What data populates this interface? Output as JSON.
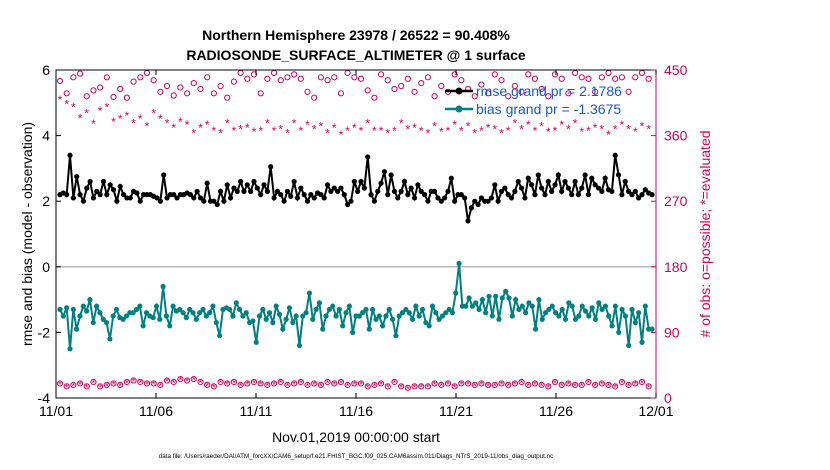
{
  "chart_data": {
    "type": "line",
    "title_lines": [
      "Northern Hemisphere 23978 / 26522 = 90.408%",
      "RADIOSONDE_SURFACE_ALTIMETER @ 1 surface"
    ],
    "xlabel": "Nov.01,2019 00:00:00 start",
    "ylabel_left": "rmse and bias (model - observation)",
    "ylabel_right": "# of obs: o=possible; *=evaluated",
    "x_ticks": [
      "11/01",
      "11/06",
      "11/11",
      "11/16",
      "11/21",
      "11/26",
      "12/01"
    ],
    "x_range_days": [
      0,
      30
    ],
    "ylim_left": [
      -4,
      6
    ],
    "y_ticks_left": [
      "-4",
      "-2",
      "0",
      "2",
      "4",
      "6"
    ],
    "ylim_right": [
      0,
      450
    ],
    "y_ticks_right": [
      "0",
      "90",
      "180",
      "270",
      "360",
      "450"
    ],
    "legend": [
      {
        "label": "rmse grand pr = 2.1786",
        "color": "#000000"
      },
      {
        "label": "bias grand pr = -1.3675",
        "color": "#008080"
      }
    ],
    "footnote": "data file: /Users/raeder/DAI/ATM_forcXX/CAM6_setup/f.e21.FHIST_BGC.f09_025.CAM6assim.011/Diags_NTrS_2019-11/obs_diag_output.nc",
    "colors": {
      "rmse": "#000000",
      "bias": "#008080",
      "counts": "#d6005c",
      "zero_line": "#bbbbbb",
      "legend_text": "#1a55e0"
    },
    "series": [
      {
        "name": "rmse",
        "values": [
          2.2,
          2.25,
          2.2,
          3.4,
          2.1,
          2.75,
          2.2,
          2.0,
          2.4,
          2.6,
          2.1,
          2.3,
          2.2,
          2.6,
          2.2,
          2.5,
          2.35,
          2.0,
          2.45,
          2.2,
          2.1,
          2.1,
          2.3,
          2.25,
          2.0,
          2.2,
          2.2,
          2.2,
          2.15,
          2.1,
          2.0,
          2.8,
          2.1,
          2.2,
          2.2,
          2.1,
          2.2,
          2.2,
          2.25,
          2.2,
          2.1,
          2.3,
          2.1,
          2.0,
          2.55,
          2.0,
          2.0,
          1.9,
          2.3,
          2.0,
          2.5,
          2.1,
          2.4,
          2.3,
          2.6,
          2.3,
          2.5,
          2.3,
          2.6,
          2.4,
          2.2,
          2.5,
          2.3,
          3.05,
          2.1,
          2.3,
          2.2,
          2.0,
          2.3,
          2.15,
          2.6,
          2.1,
          2.4,
          2.2,
          2.0,
          2.2,
          2.1,
          2.25,
          2.2,
          2.1,
          2.5,
          2.3,
          2.4,
          2.3,
          2.4,
          2.2,
          1.9,
          2.0,
          2.6,
          2.3,
          2.6,
          2.4,
          3.35,
          2.2,
          2.0,
          2.3,
          2.55,
          2.9,
          2.2,
          2.8,
          2.3,
          2.1,
          2.3,
          2.6,
          2.2,
          2.4,
          2.1,
          2.5,
          2.3,
          2.2,
          2.0,
          2.3,
          2.3,
          2.1,
          2.0,
          2.1,
          2.3,
          2.7,
          2.0,
          2.2,
          2.2,
          2.1,
          1.4,
          1.8,
          2.0,
          1.9,
          2.1,
          2.0,
          2.0,
          2.1,
          2.5,
          2.0,
          2.3,
          2.4,
          2.2,
          2.1,
          2.3,
          2.6,
          2.4,
          2.1,
          2.7,
          2.5,
          2.2,
          2.8,
          2.4,
          2.2,
          2.6,
          2.3,
          2.5,
          2.8,
          2.3,
          2.6,
          2.4,
          2.2,
          2.6,
          2.2,
          2.4,
          2.8,
          2.2,
          2.7,
          2.5,
          2.4,
          2.3,
          2.7,
          2.35,
          2.3,
          3.4,
          2.8,
          2.2,
          2.6,
          2.3,
          2.2,
          2.3,
          2.1,
          2.2,
          2.35,
          2.25,
          2.2
        ]
      },
      {
        "name": "bias",
        "values": [
          -1.3,
          -1.5,
          -1.25,
          -2.5,
          -1.3,
          -1.9,
          -1.5,
          -1.2,
          -1.35,
          -1.0,
          -1.7,
          -1.2,
          -1.4,
          -1.6,
          -1.7,
          -2.2,
          -1.5,
          -1.3,
          -1.55,
          -1.6,
          -1.5,
          -1.4,
          -1.4,
          -1.3,
          -1.2,
          -1.8,
          -1.4,
          -1.5,
          -1.55,
          -1.2,
          -1.6,
          -0.6,
          -1.5,
          -1.8,
          -1.2,
          -1.35,
          -1.3,
          -1.4,
          -1.55,
          -1.3,
          -1.4,
          -1.6,
          -1.4,
          -1.3,
          -1.5,
          -1.4,
          -1.2,
          -1.7,
          -2.1,
          -1.3,
          -1.25,
          -1.3,
          -1.5,
          -1.1,
          -1.3,
          -1.5,
          -1.4,
          -1.7,
          -1.65,
          -2.3,
          -1.5,
          -1.3,
          -1.6,
          -1.4,
          -1.7,
          -1.2,
          -1.45,
          -1.9,
          -1.6,
          -1.25,
          -1.7,
          -1.5,
          -2.4,
          -1.5,
          -1.4,
          -0.8,
          -1.6,
          -1.3,
          -1.1,
          -1.9,
          -1.5,
          -1.3,
          -1.2,
          -1.5,
          -1.3,
          -1.8,
          -1.4,
          -1.2,
          -2.0,
          -1.5,
          -1.5,
          -1.4,
          -1.3,
          -1.9,
          -1.3,
          -1.6,
          -1.5,
          -1.8,
          -1.5,
          -1.3,
          -1.6,
          -2.1,
          -1.5,
          -1.4,
          -1.3,
          -1.4,
          -1.6,
          -1.2,
          -1.5,
          -1.3,
          -1.7,
          -1.8,
          -1.2,
          -1.4,
          -1.6,
          -1.5,
          -1.4,
          -1.3,
          -1.4,
          -0.8,
          0.1,
          -1.2,
          -1.2,
          -0.95,
          -1.2,
          -1.1,
          -1.3,
          -1.0,
          -1.4,
          -0.9,
          -1.5,
          -0.9,
          -1.6,
          -0.95,
          -0.75,
          -0.95,
          -1.5,
          -1.0,
          -1.3,
          -1.2,
          -1.4,
          -1.1,
          -1.2,
          -1.9,
          -1.0,
          -1.6,
          -1.4,
          -1.3,
          -1.2,
          -1.4,
          -1.5,
          -1.3,
          -1.6,
          -1.1,
          -1.2,
          -1.6,
          -1.5,
          -1.2,
          -1.35,
          -1.5,
          -1.25,
          -1.6,
          -1.1,
          -1.3,
          -1.2,
          -1.5,
          -1.8,
          -1.2,
          -2.0,
          -1.3,
          -1.5,
          -2.4,
          -1.3,
          -1.7,
          -1.4,
          -2.3,
          -1.2,
          -1.9,
          -1.9
        ]
      },
      {
        "name": "possible_counts",
        "marker": "o",
        "values": [
          435,
          442,
          418,
          412,
          440,
          425,
          445,
          420,
          414,
          438,
          422,
          446,
          426,
          412,
          440,
          438,
          413,
          446,
          424,
          436,
          412,
          445,
          434,
          418,
          440,
          428,
          446,
          414,
          436,
          440,
          420,
          446,
          428,
          438,
          415,
          440,
          426,
          444,
          418,
          436,
          432,
          446,
          424,
          414,
          440,
          438,
          418,
          446,
          428,
          438,
          412,
          440,
          434,
          420,
          446,
          426,
          438,
          414,
          444,
          432,
          418,
          440,
          438,
          420,
          446,
          428,
          436,
          414,
          440,
          432,
          444,
          418,
          438,
          446,
          420,
          438,
          412,
          446,
          440,
          424,
          436,
          414,
          440,
          442,
          418,
          436,
          446,
          424,
          440,
          420,
          438,
          446,
          422,
          436,
          412,
          440,
          444,
          418,
          436,
          440,
          424,
          446,
          428,
          414,
          438,
          440,
          420,
          446,
          432,
          418,
          440,
          436,
          414,
          446,
          428,
          440,
          420,
          438,
          444,
          416,
          436,
          442,
          424,
          440,
          414,
          446,
          430,
          438,
          418,
          440,
          444,
          420,
          436,
          438,
          414,
          446,
          428,
          440,
          420,
          436,
          444,
          416,
          438,
          446,
          424,
          440,
          414,
          436,
          444,
          420,
          438,
          442,
          418,
          436,
          446,
          424,
          440,
          414,
          438,
          444,
          420,
          436,
          440,
          418,
          446,
          426,
          438,
          414,
          440,
          444,
          420,
          436,
          440,
          418,
          446,
          424,
          438,
          414
        ]
      },
      {
        "name": "evaluated_counts",
        "marker": "*",
        "values": [
          410,
          402,
          404,
          406,
          400,
          380,
          385,
          382,
          392,
          390,
          377,
          392,
          395,
          398,
          400,
          393,
          380,
          392,
          384,
          378,
          388,
          383,
          378,
          378,
          384,
          392,
          374,
          380,
          392,
          392,
          384,
          374,
          378,
          382,
          372,
          368,
          380,
          386,
          376,
          372,
          364,
          368,
          372,
          362,
          376,
          372,
          368,
          360,
          364,
          372,
          378,
          362,
          368,
          375,
          370,
          364,
          372,
          378,
          366,
          372,
          368,
          374,
          378,
          364,
          368,
          372,
          370,
          366,
          364,
          374,
          378,
          362,
          368,
          372,
          376,
          364,
          370,
          368,
          374,
          372,
          364,
          368,
          372,
          376,
          362,
          370,
          368,
          376,
          372,
          364,
          368,
          374,
          378,
          366,
          368,
          372,
          368,
          376,
          364,
          370,
          368,
          374,
          378,
          366,
          370,
          364,
          372,
          376,
          368,
          372,
          364,
          370,
          374,
          378,
          366,
          372,
          368,
          364,
          376,
          372,
          368,
          366,
          374,
          378,
          364,
          370,
          368,
          374,
          372,
          366,
          370,
          376,
          364,
          372,
          368,
          374,
          378,
          366,
          370,
          372,
          376,
          364,
          368,
          372,
          374,
          378,
          366,
          370,
          368,
          374,
          376,
          364,
          370,
          372,
          378,
          374,
          366,
          370,
          368,
          376,
          372,
          364,
          370,
          374,
          362,
          366,
          370,
          374,
          376,
          364,
          370,
          372,
          366,
          368,
          374,
          376,
          370,
          364
        ]
      },
      {
        "name": "low_possible_counts",
        "marker": "o",
        "values": [
          20,
          18,
          16,
          20,
          18,
          16,
          20,
          18,
          16,
          20,
          22,
          18,
          16,
          20,
          18,
          22,
          20,
          24,
          18,
          20,
          22,
          18,
          24,
          20,
          22,
          18,
          20,
          16,
          20,
          22,
          18,
          20,
          24,
          26,
          22,
          24,
          26,
          20,
          24,
          22,
          26,
          20,
          22,
          24,
          18,
          20,
          16,
          20,
          22,
          18,
          20,
          18,
          22,
          20,
          18,
          16,
          20,
          18,
          22,
          18,
          20,
          16,
          18,
          22,
          20,
          18,
          22,
          20,
          18,
          16,
          20,
          18,
          22,
          20,
          18,
          22,
          20,
          16,
          18,
          20,
          22,
          18,
          20,
          24,
          22,
          20,
          18,
          22,
          20,
          18,
          20,
          22,
          16,
          20,
          18,
          22,
          20,
          18,
          16,
          20,
          22,
          18,
          16,
          20,
          14,
          18,
          16,
          8,
          16,
          18,
          16,
          14,
          20,
          16,
          18,
          22,
          20,
          18,
          16,
          22,
          20,
          18,
          20,
          16,
          18,
          22,
          20,
          16,
          18,
          20,
          18,
          16,
          20,
          22,
          18,
          16,
          20,
          18,
          22,
          20,
          18,
          16,
          20,
          22,
          18,
          20,
          16,
          18,
          22,
          20,
          18,
          16,
          20,
          22,
          18,
          20,
          18,
          16,
          22,
          20,
          18,
          16,
          20,
          22,
          18,
          20,
          16,
          18,
          22,
          20,
          18,
          16,
          20,
          18,
          22,
          20,
          16,
          18
        ]
      }
    ]
  }
}
